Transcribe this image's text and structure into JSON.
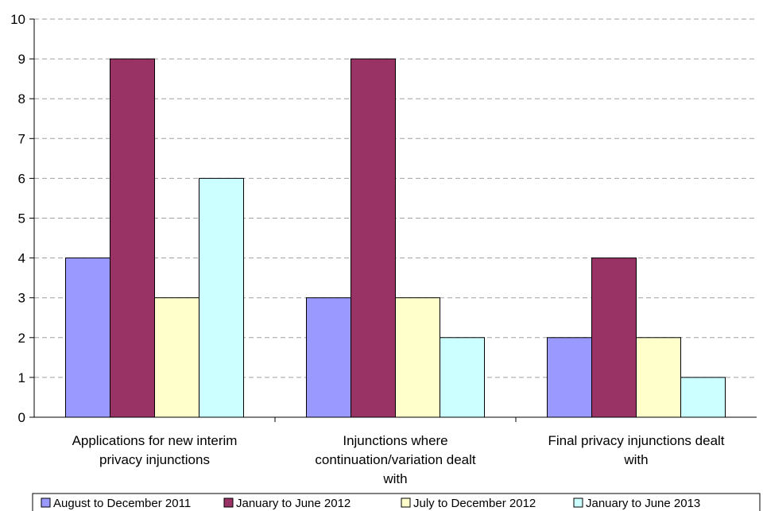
{
  "chart_data": {
    "type": "bar",
    "title": "",
    "xlabel": "",
    "ylabel": "",
    "ylim": [
      0,
      10
    ],
    "yticks": [
      "0",
      "1",
      "2",
      "3",
      "4",
      "5",
      "6",
      "7",
      "8",
      "9",
      "10"
    ],
    "grid": "horizontal dashed",
    "legend_position": "bottom",
    "categories": [
      "Applications for new interim privacy injunctions",
      "Injunctions where continuation/variation dealt with",
      "Final privacy injunctions dealt with"
    ],
    "series": [
      {
        "name": "August to December 2011",
        "color": "#9999ff",
        "values": [
          4,
          3,
          2
        ]
      },
      {
        "name": "January to June 2012",
        "color": "#993366",
        "values": [
          9,
          9,
          4
        ]
      },
      {
        "name": "July to December 2012",
        "color": "#ffffcc",
        "values": [
          3,
          3,
          2
        ]
      },
      {
        "name": "January to June 2013",
        "color": "#ccffff",
        "values": [
          6,
          2,
          1
        ]
      }
    ]
  }
}
